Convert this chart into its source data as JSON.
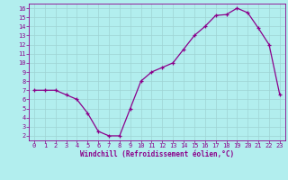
{
  "x": [
    0,
    1,
    2,
    3,
    4,
    5,
    6,
    7,
    8,
    9,
    10,
    11,
    12,
    13,
    14,
    15,
    16,
    17,
    18,
    19,
    20,
    21,
    22,
    23
  ],
  "y": [
    7,
    7,
    7,
    6.5,
    6,
    4.5,
    2.5,
    2,
    2,
    5,
    8.0,
    9.0,
    9.5,
    10.0,
    11.5,
    13.0,
    14.0,
    15.2,
    15.3,
    16.0,
    15.5,
    13.8,
    12.0,
    6.5
  ],
  "line_color": "#8b008b",
  "marker": "+",
  "marker_size": 3.5,
  "marker_linewidth": 0.9,
  "background_color": "#b2eeee",
  "grid_color": "#9ed4d4",
  "xlabel": "Windchill (Refroidissement éolien,°C)",
  "xlim": [
    -0.5,
    23.5
  ],
  "ylim": [
    1.5,
    16.5
  ],
  "xticks": [
    0,
    1,
    2,
    3,
    4,
    5,
    6,
    7,
    8,
    9,
    10,
    11,
    12,
    13,
    14,
    15,
    16,
    17,
    18,
    19,
    20,
    21,
    22,
    23
  ],
  "yticks": [
    2,
    3,
    4,
    5,
    6,
    7,
    8,
    9,
    10,
    11,
    12,
    13,
    14,
    15,
    16
  ],
  "tick_color": "#8b008b",
  "label_color": "#8b008b",
  "tick_fontsize": 5.0,
  "xlabel_fontsize": 5.5,
  "figsize": [
    3.2,
    2.0
  ],
  "dpi": 100
}
